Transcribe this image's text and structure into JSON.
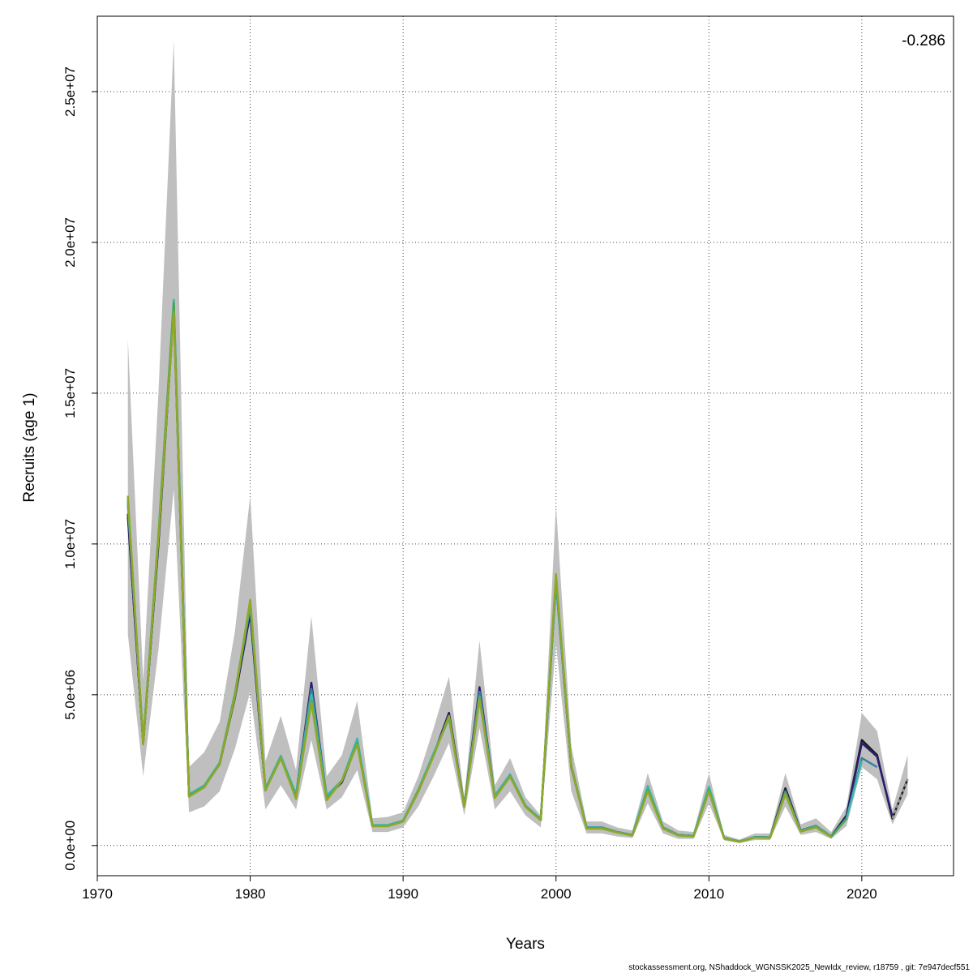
{
  "chart_data": {
    "type": "line",
    "xlabel": "Years",
    "ylabel": "Recruits (age 1)",
    "annotation": "-0.286",
    "footer": "stockassessment.org, NShaddock_WGNSSK2025_NewIdx_review, r18759 , git: 7e947decf551",
    "xlim": [
      1970,
      2026
    ],
    "ylim": [
      -1000000,
      27500000
    ],
    "x_ticks": [
      1970,
      1980,
      1990,
      2000,
      2010,
      2020
    ],
    "x_tick_labels": [
      "1970",
      "1980",
      "1990",
      "2000",
      "2010",
      "2020"
    ],
    "y_ticks": [
      0,
      5000000,
      10000000,
      15000000,
      20000000,
      25000000
    ],
    "y_tick_labels": [
      "0.0e+00",
      "5.0e+06",
      "1.0e+07",
      "1.5e+07",
      "2.0e+07",
      "2.5e+07"
    ],
    "grid": true,
    "band": {
      "x": [
        1972,
        1973,
        1974,
        1975,
        1976,
        1977,
        1978,
        1979,
        1980,
        1981,
        1982,
        1983,
        1984,
        1985,
        1986,
        1987,
        1988,
        1989,
        1990,
        1991,
        1992,
        1993,
        1994,
        1995,
        1996,
        1997,
        1998,
        1999,
        2000,
        2001,
        2002,
        2003,
        2004,
        2005,
        2006,
        2007,
        2008,
        2009,
        2010,
        2011,
        2012,
        2013,
        2014,
        2015,
        2016,
        2017,
        2018,
        2019,
        2020,
        2021,
        2022,
        2023
      ],
      "upper": [
        16800000,
        5500000,
        15000000,
        26700000,
        2600000,
        3100000,
        4100000,
        7100000,
        11600000,
        2800000,
        4300000,
        2500000,
        7600000,
        2300000,
        3000000,
        4800000,
        900000,
        950000,
        1100000,
        2300000,
        3900000,
        5600000,
        1600000,
        6800000,
        2000000,
        2900000,
        1600000,
        1000000,
        11300000,
        3300000,
        800000,
        800000,
        600000,
        500000,
        2400000,
        800000,
        500000,
        450000,
        2400000,
        350000,
        200000,
        400000,
        400000,
        2400000,
        700000,
        900000,
        450000,
        1300000,
        4400000,
        3800000,
        1200000,
        3000000
      ],
      "lower": [
        7000000,
        2300000,
        6500000,
        11800000,
        1100000,
        1300000,
        1800000,
        3200000,
        5100000,
        1200000,
        2000000,
        1200000,
        3500000,
        1200000,
        1600000,
        2500000,
        450000,
        450000,
        600000,
        1300000,
        2300000,
        3400000,
        1000000,
        3900000,
        1200000,
        1800000,
        1000000,
        600000,
        6700000,
        1800000,
        400000,
        400000,
        300000,
        250000,
        1400000,
        400000,
        220000,
        220000,
        1400000,
        170000,
        80000,
        180000,
        180000,
        1300000,
        350000,
        450000,
        220000,
        650000,
        2600000,
        2200000,
        700000,
        1700000
      ]
    },
    "series": [
      {
        "name": "",
        "color": "#1c1c1c",
        "dash": false,
        "x": [
          1972,
          1973,
          1974,
          1975,
          1976,
          1977,
          1978,
          1979,
          1980,
          1981,
          1982,
          1983,
          1984,
          1985,
          1986,
          1987,
          1988,
          1989,
          1990,
          1991,
          1992,
          1993,
          1994,
          1995,
          1996,
          1997,
          1998,
          1999,
          2000,
          2001,
          2002,
          2003,
          2004,
          2005,
          2006,
          2007,
          2008,
          2009,
          2010,
          2011,
          2012,
          2013,
          2014,
          2015,
          2016,
          2017,
          2018,
          2019,
          2020,
          2021,
          2022,
          2023
        ],
        "values": [
          11000000,
          3400000,
          10000000,
          17800000,
          1650000,
          1950000,
          2700000,
          4900000,
          7700000,
          1850000,
          2900000,
          1650000,
          5300000,
          1600000,
          2100000,
          3400000,
          650000,
          650000,
          800000,
          1800000,
          3000000,
          4400000,
          1300000,
          5200000,
          1600000,
          2300000,
          1300000,
          850000,
          8800000,
          2600000,
          600000,
          600000,
          450000,
          350000,
          1900000,
          600000,
          350000,
          320000,
          1900000,
          250000,
          130000,
          280000,
          270000,
          1900000,
          500000,
          650000,
          300000,
          1000000,
          3500000,
          3000000,
          900000,
          2200000
        ]
      },
      {
        "name": "",
        "color": "#2b1d6e",
        "dash": false,
        "x": [
          1972,
          1973,
          1974,
          1975,
          1976,
          1977,
          1978,
          1979,
          1980,
          1981,
          1982,
          1983,
          1984,
          1985,
          1986,
          1987,
          1988,
          1989,
          1990,
          1991,
          1992,
          1993,
          1994,
          1995,
          1996,
          1997,
          1998,
          1999,
          2000,
          2001,
          2002,
          2003,
          2004,
          2005,
          2006,
          2007,
          2008,
          2009,
          2010,
          2011,
          2012,
          2013,
          2014,
          2015,
          2016,
          2017,
          2018,
          2019,
          2020,
          2021,
          2022
        ],
        "values": [
          10900000,
          3400000,
          10100000,
          17900000,
          1650000,
          1960000,
          2700000,
          4950000,
          7750000,
          1860000,
          2920000,
          1660000,
          5400000,
          1620000,
          2120000,
          3420000,
          660000,
          660000,
          810000,
          1820000,
          3020000,
          4380000,
          1310000,
          5250000,
          1620000,
          2320000,
          1310000,
          860000,
          8850000,
          2620000,
          600000,
          600000,
          450000,
          350000,
          1880000,
          600000,
          350000,
          320000,
          1880000,
          250000,
          130000,
          280000,
          270000,
          1850000,
          500000,
          650000,
          300000,
          980000,
          3400000,
          2950000,
          950000
        ]
      },
      {
        "name": "",
        "color": "#3a7fa0",
        "dash": false,
        "x": [
          1972,
          1973,
          1974,
          1975,
          1976,
          1977,
          1978,
          1979,
          1980,
          1981,
          1982,
          1983,
          1984,
          1985,
          1986,
          1987,
          1988,
          1989,
          1990,
          1991,
          1992,
          1993,
          1994,
          1995,
          1996,
          1997,
          1998,
          1999,
          2000,
          2001,
          2002,
          2003,
          2004,
          2005,
          2006,
          2007,
          2008,
          2009,
          2010,
          2011,
          2012,
          2013,
          2014,
          2015,
          2016,
          2017,
          2018,
          2019,
          2020,
          2021
        ],
        "values": [
          11300000,
          3450000,
          10200000,
          18000000,
          1680000,
          1980000,
          2720000,
          5000000,
          7900000,
          1880000,
          2950000,
          1680000,
          5200000,
          1640000,
          2140000,
          3480000,
          670000,
          670000,
          820000,
          1840000,
          3050000,
          4250000,
          1320000,
          5100000,
          1640000,
          2340000,
          1320000,
          870000,
          8700000,
          2640000,
          600000,
          600000,
          450000,
          350000,
          1950000,
          600000,
          350000,
          320000,
          1950000,
          250000,
          130000,
          280000,
          270000,
          1800000,
          500000,
          650000,
          300000,
          900000,
          2900000,
          2600000
        ]
      },
      {
        "name": "",
        "color": "#3cb8b0",
        "dash": false,
        "x": [
          1972,
          1973,
          1974,
          1975,
          1976,
          1977,
          1978,
          1979,
          1980,
          1981,
          1982,
          1983,
          1984,
          1985,
          1986,
          1987,
          1988,
          1989,
          1990,
          1991,
          1992,
          1993,
          1994,
          1995,
          1996,
          1997,
          1998,
          1999,
          2000,
          2001,
          2002,
          2003,
          2004,
          2005,
          2006,
          2007,
          2008,
          2009,
          2010,
          2011,
          2012,
          2013,
          2014,
          2015,
          2016,
          2017,
          2018,
          2019,
          2020
        ],
        "values": [
          11400000,
          3450000,
          10300000,
          18100000,
          1700000,
          2000000,
          2750000,
          5050000,
          8000000,
          1900000,
          2980000,
          1700000,
          5000000,
          1660000,
          2160000,
          3550000,
          680000,
          680000,
          830000,
          1860000,
          3080000,
          4200000,
          1330000,
          4950000,
          1660000,
          2360000,
          1330000,
          880000,
          8800000,
          2660000,
          600000,
          600000,
          450000,
          350000,
          1980000,
          600000,
          350000,
          320000,
          1950000,
          250000,
          130000,
          280000,
          270000,
          1750000,
          480000,
          640000,
          300000,
          880000,
          2800000
        ]
      },
      {
        "name": "",
        "color": "#4aa64a",
        "dash": false,
        "x": [
          1972,
          1973,
          1974,
          1975,
          1976,
          1977,
          1978,
          1979,
          1980,
          1981,
          1982,
          1983,
          1984,
          1985,
          1986,
          1987,
          1988,
          1989,
          1990,
          1991,
          1992,
          1993,
          1994,
          1995,
          1996,
          1997,
          1998,
          1999,
          2000,
          2001,
          2002,
          2003,
          2004,
          2005,
          2006,
          2007,
          2008,
          2009,
          2010,
          2011,
          2012,
          2013,
          2014,
          2015,
          2016,
          2017,
          2018,
          2019
        ],
        "values": [
          11500000,
          3400000,
          10300000,
          18000000,
          1650000,
          1950000,
          2720000,
          5000000,
          8100000,
          1850000,
          2920000,
          1600000,
          4800000,
          1550000,
          2150000,
          3400000,
          650000,
          650000,
          800000,
          1820000,
          3000000,
          4250000,
          1300000,
          4900000,
          1600000,
          2300000,
          1300000,
          850000,
          8900000,
          2650000,
          580000,
          580000,
          440000,
          340000,
          1850000,
          580000,
          340000,
          310000,
          1850000,
          240000,
          130000,
          270000,
          260000,
          1750000,
          470000,
          620000,
          290000,
          900000
        ]
      },
      {
        "name": "",
        "color": "#8fa82a",
        "dash": false,
        "x": [
          1972,
          1973,
          1974,
          1975,
          1976,
          1977,
          1978,
          1979,
          1980,
          1981,
          1982,
          1983,
          1984,
          1985,
          1986,
          1987,
          1988,
          1989,
          1990,
          1991,
          1992,
          1993,
          1994,
          1995,
          1996,
          1997,
          1998,
          1999,
          2000,
          2001,
          2002,
          2003,
          2004,
          2005,
          2006,
          2007,
          2008,
          2009,
          2010,
          2011,
          2012,
          2013,
          2014,
          2015,
          2016,
          2017,
          2018
        ],
        "values": [
          11600000,
          3350000,
          10200000,
          17700000,
          1620000,
          1930000,
          2700000,
          4950000,
          8150000,
          1820000,
          2900000,
          1550000,
          4750000,
          1500000,
          2150000,
          3350000,
          640000,
          640000,
          790000,
          1800000,
          2980000,
          4300000,
          1280000,
          4850000,
          1580000,
          2280000,
          1280000,
          840000,
          9000000,
          2620000,
          560000,
          560000,
          430000,
          330000,
          1800000,
          560000,
          330000,
          300000,
          1800000,
          230000,
          120000,
          260000,
          250000,
          1700000,
          460000,
          600000,
          280000
        ]
      },
      {
        "name": "",
        "color": "#a0a0a0",
        "dash": true,
        "x": [
          2022,
          2023
        ],
        "values": [
          900000,
          2200000
        ]
      }
    ]
  }
}
